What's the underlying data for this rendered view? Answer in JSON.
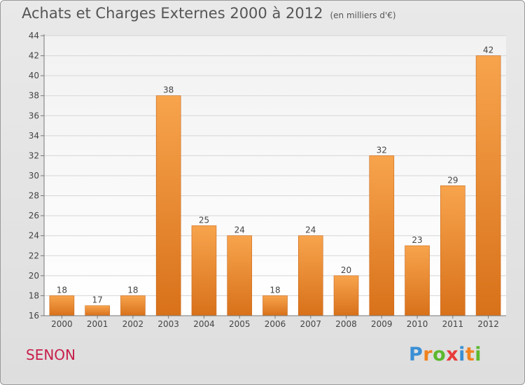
{
  "header": {
    "title": "Achats et Charges Externes 2000 à 2012",
    "subtitle": "(en milliers d'€)"
  },
  "footer": {
    "commune": "SENON",
    "logo_letters": [
      "P",
      "r",
      "o",
      "x",
      "i",
      "t",
      "i"
    ],
    "logo_colors": [
      "#3a8fd4",
      "#f0821e",
      "#5cb82e",
      "#e83c3c",
      "#3a8fd4",
      "#f0821e",
      "#5cb82e"
    ]
  },
  "chart_data": {
    "type": "bar",
    "categories": [
      "2000",
      "2001",
      "2002",
      "2003",
      "2004",
      "2005",
      "2006",
      "2007",
      "2008",
      "2009",
      "2010",
      "2011",
      "2012"
    ],
    "values": [
      18,
      17,
      18,
      38,
      25,
      24,
      18,
      24,
      20,
      32,
      23,
      29,
      42
    ],
    "ylim": [
      16,
      44
    ],
    "yticks": [
      16,
      18,
      20,
      22,
      24,
      26,
      28,
      30,
      32,
      34,
      36,
      38,
      40,
      42,
      44
    ],
    "grid": true,
    "bar_color": "#f08a28",
    "data_labels": true
  }
}
